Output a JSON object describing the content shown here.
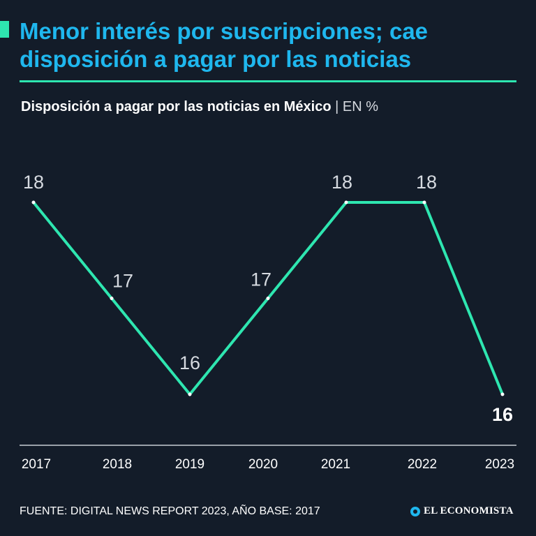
{
  "header": {
    "title_line1": "Menor interés por suscripciones; cae",
    "title_line2": "disposición a pagar por las noticias",
    "subtitle": "Disposición a pagar por las noticias en México",
    "unit": "| EN %"
  },
  "footer": {
    "source": "FUENTE: DIGITAL NEWS REPORT 2023, AÑO BASE: 2017",
    "brand": "EL ECONOMISTA"
  },
  "colors": {
    "background": "#131c29",
    "title": "#1fb7ee",
    "line": "#2ee6b0",
    "text": "#ffffff",
    "axis": "#c8cdd4",
    "label": "#d6dae0"
  },
  "chart_data": {
    "type": "line",
    "title": "Disposición a pagar por las noticias en México",
    "ylabel": "EN %",
    "xlabel": "",
    "categories": [
      "2017",
      "2018",
      "2019",
      "2020",
      "2021",
      "2022",
      "2023"
    ],
    "values": [
      18,
      17,
      16,
      17,
      18,
      18,
      16
    ],
    "data_labels": [
      "18",
      "17",
      "16",
      "17",
      "18",
      "18",
      "16"
    ],
    "highlight_last": true,
    "grid": false
  }
}
